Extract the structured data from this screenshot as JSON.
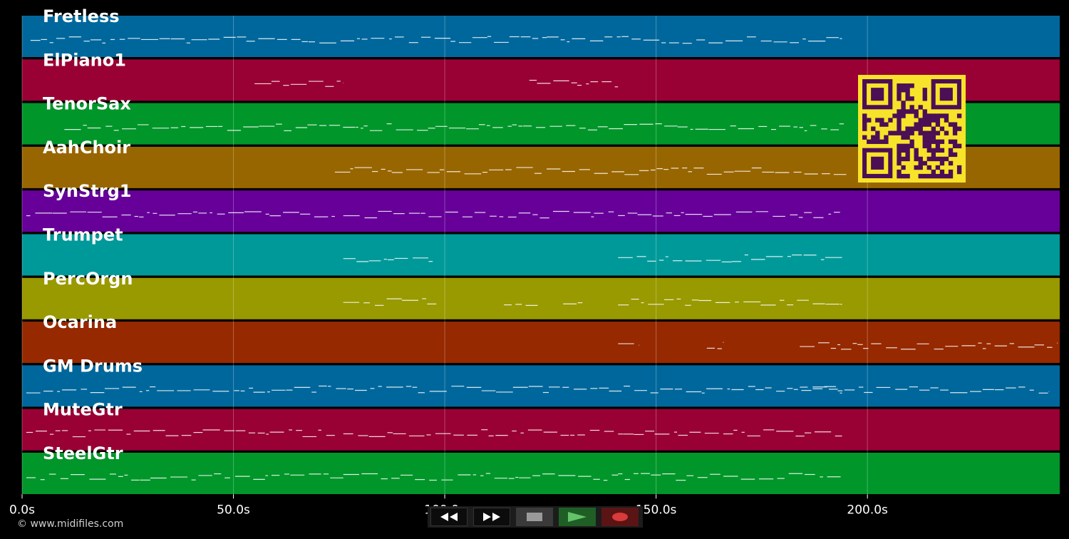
{
  "tracks": [
    {
      "name": "Fretless",
      "color": "#00679c"
    },
    {
      "name": "ElPiano1",
      "color": "#990033"
    },
    {
      "name": "TenorSax",
      "color": "#00962a"
    },
    {
      "name": "AahChoir",
      "color": "#986600"
    },
    {
      "name": "SynStrg1",
      "color": "#660099"
    },
    {
      "name": "Trumpet",
      "color": "#009999"
    },
    {
      "name": "PercOrgn",
      "color": "#999900"
    },
    {
      "name": "Ocarina",
      "color": "#962900"
    },
    {
      "name": "GM Drums",
      "color": "#00679c"
    },
    {
      "name": "MuteGtr",
      "color": "#990033"
    },
    {
      "name": "SteelGtr",
      "color": "#00962a"
    }
  ],
  "time_axis": {
    "ticks": [
      "0.0s",
      "50.0s",
      "100.0s",
      "150.0s",
      "200.0s"
    ],
    "tick_values": [
      0,
      50,
      100,
      150,
      200
    ],
    "max_seconds": 245.5
  },
  "copyright": "© www.midifiles.com",
  "transport": {
    "buttons": [
      "rewind",
      "fast-forward",
      "stop",
      "play",
      "record"
    ],
    "colors": {
      "play": "#66c26a",
      "record": "#d93a3a",
      "stop": "#9a9a9a"
    }
  },
  "qr_colors": {
    "fg": "#4a0f55",
    "bg": "#f7e32a"
  },
  "note_color": "#ffffff"
}
